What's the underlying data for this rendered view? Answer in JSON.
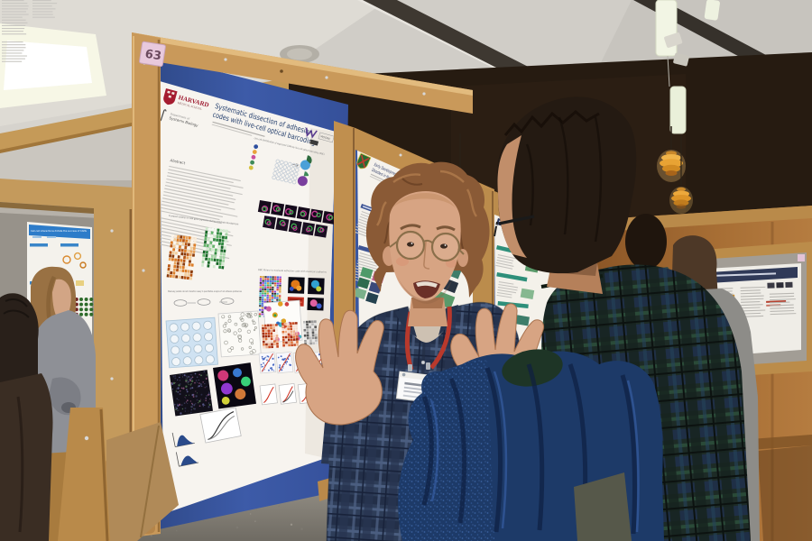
{
  "boards": {
    "main_label": "63"
  },
  "posters": {
    "main": {
      "institution": "HARVARD",
      "institution_sub": "MEDICAL SCHOOL",
      "department_line1": "Department of",
      "department_line2": "Systems Biology",
      "title_line1": "Systematic dissection of adhesion",
      "title_line2": "codes with live-cell optical barcoding",
      "logo_moore": "MOORE",
      "sections": {
        "abstract": "Abstract",
        "livecell": "Live-cell identification of expressed CAMs by live-cell optical barcoding (OBC)",
        "variation": "Increased variation in CAM gene expression during vertebrate development",
        "parallel_assay": "Massively parallel cell-cell interaction assay to quantitative analysis of cell adhesive preferences",
        "obc_library": "OBC library to evaluate adhesion code with classical cadherins"
      }
    },
    "right": {
      "title_line1": "Early Developmental Origin of Cortical",
      "title_line2": "Disorders in Human Neural Stem Cells"
    },
    "left": {
      "title": "Cell-cell interactions dictate the success of CAMs"
    }
  },
  "colors": {
    "poster_board_blue": "#3a57a0",
    "wood_frame": "#c9995a",
    "lanyard_red": "#b8392c",
    "label_pink": "#e8c9dc",
    "jacket_blue": "#1d3a68",
    "wall_wood": "#9c6733",
    "dark_wall": "#261b11",
    "ceiling_grey": "#d6d3cd",
    "lamp_amber": "#e8a83c",
    "carpet_grey": "#8a867e",
    "harvard_crimson": "#a51c30"
  }
}
